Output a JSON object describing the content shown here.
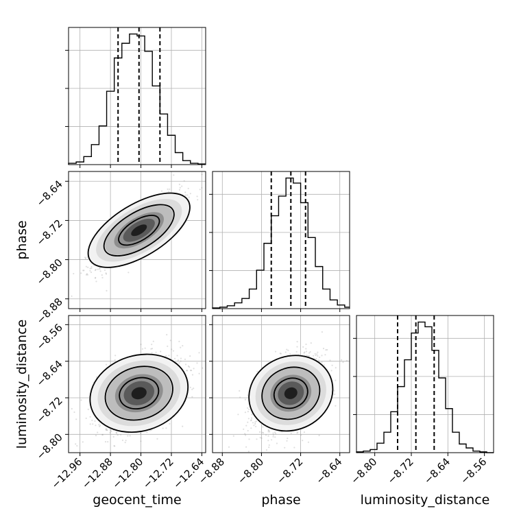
{
  "chart_data": {
    "type": "corner",
    "parameters": [
      {
        "name": "geocent_time",
        "xlabel": "geocent_time",
        "ticks": [
          -12.96,
          -12.88,
          -12.8,
          -12.72,
          -12.64
        ],
        "tick_labels": [
          "−12.96",
          "−12.88",
          "−12.80",
          "−12.72",
          "−12.64"
        ],
        "range": [
          -12.99,
          -12.63
        ],
        "quantiles": [
          -12.86,
          -12.805,
          -12.75
        ],
        "histogram": {
          "bin_edges": [
            -12.99,
            -12.97,
            -12.95,
            -12.93,
            -12.91,
            -12.89,
            -12.87,
            -12.85,
            -12.83,
            -12.81,
            -12.79,
            -12.77,
            -12.75,
            -12.73,
            -12.71,
            -12.69,
            -12.67,
            -12.65,
            -12.63
          ],
          "counts": [
            2,
            4,
            12,
            30,
            58,
            110,
            160,
            182,
            196,
            193,
            170,
            118,
            76,
            44,
            18,
            6,
            2,
            1
          ]
        }
      },
      {
        "name": "phase",
        "xlabel": "phase",
        "ylabel": "phase",
        "ticks": [
          -8.88,
          -8.8,
          -8.72,
          -8.64
        ],
        "tick_labels": [
          "−8.88",
          "−8.80",
          "−8.72",
          "−8.64"
        ],
        "range": [
          -8.9,
          -8.62
        ],
        "quantiles": [
          -8.78,
          -8.74,
          -8.71
        ],
        "histogram": {
          "bin_edges": [
            -8.9,
            -8.885,
            -8.87,
            -8.855,
            -8.84,
            -8.825,
            -8.81,
            -8.795,
            -8.78,
            -8.765,
            -8.75,
            -8.735,
            -8.72,
            -8.705,
            -8.69,
            -8.675,
            -8.66,
            -8.645,
            -8.63,
            -8.62
          ],
          "counts": [
            1,
            2,
            4,
            8,
            14,
            27,
            53,
            90,
            128,
            155,
            180,
            173,
            146,
            98,
            58,
            27,
            12,
            5,
            2
          ]
        }
      },
      {
        "name": "luminosity_distance",
        "xlabel": "luminosity_distance",
        "ylabel": "luminosity_distance",
        "ticks": [
          -8.8,
          -8.72,
          -8.64,
          -8.56
        ],
        "tick_labels": [
          "−8.80",
          "−8.72",
          "−8.64",
          "−8.56"
        ],
        "range": [
          -8.84,
          -8.54
        ],
        "quantiles": [
          -8.75,
          -8.71,
          -8.67
        ],
        "histogram": {
          "bin_edges": [
            -8.84,
            -8.825,
            -8.81,
            -8.795,
            -8.78,
            -8.765,
            -8.75,
            -8.735,
            -8.72,
            -8.705,
            -8.69,
            -8.675,
            -8.66,
            -8.645,
            -8.63,
            -8.615,
            -8.6,
            -8.585,
            -8.57,
            -8.555,
            -8.54
          ],
          "counts": [
            1,
            2,
            4,
            12,
            26,
            52,
            84,
            118,
            152,
            166,
            160,
            130,
            95,
            56,
            26,
            11,
            6,
            2,
            1,
            0
          ]
        }
      }
    ],
    "pairs": [
      {
        "x": "geocent_time",
        "y": "phase",
        "correlation": 0.85
      },
      {
        "x": "geocent_time",
        "y": "luminosity_distance",
        "correlation": 0.4
      },
      {
        "x": "phase",
        "y": "luminosity_distance",
        "correlation": 0.45
      }
    ],
    "contour_levels": [
      0.39,
      0.86,
      0.99
    ],
    "grid": true,
    "colors": {
      "line": "#000000",
      "grid": "#b0b0b0",
      "scatter": "#8c8c8c"
    }
  }
}
